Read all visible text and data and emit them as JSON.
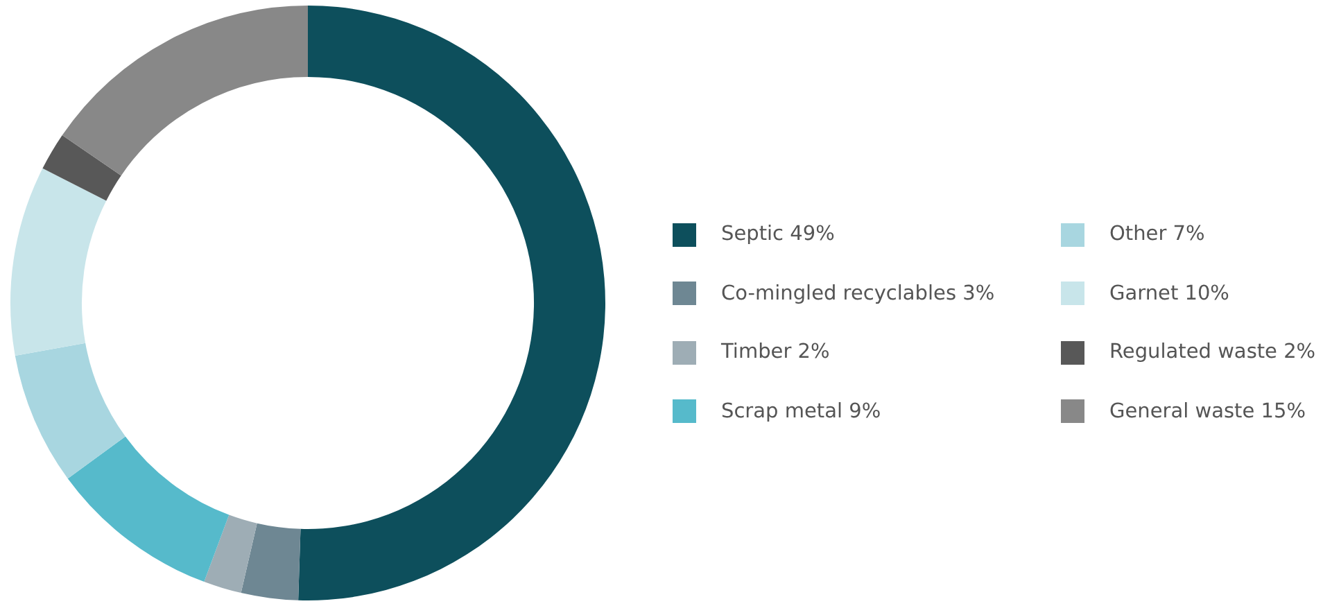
{
  "chart_data": {
    "type": "donut",
    "categories": [
      "Septic",
      "Co-mingled recyclables",
      "Timber",
      "Scrap metal",
      "Other",
      "Garnet",
      "Regulated waste",
      "General waste"
    ],
    "values": [
      49,
      3,
      2,
      9,
      7,
      10,
      2,
      15
    ],
    "value_labels": [
      "49%",
      "3%",
      "2%",
      "9%",
      "7%",
      "10%",
      "2%",
      "15%"
    ],
    "colors": [
      "#0d4f5c",
      "#6e8793",
      "#9eadb5",
      "#56bacb",
      "#a8d6e0",
      "#c8e5ea",
      "#585858",
      "#888888"
    ],
    "legend": "right"
  }
}
